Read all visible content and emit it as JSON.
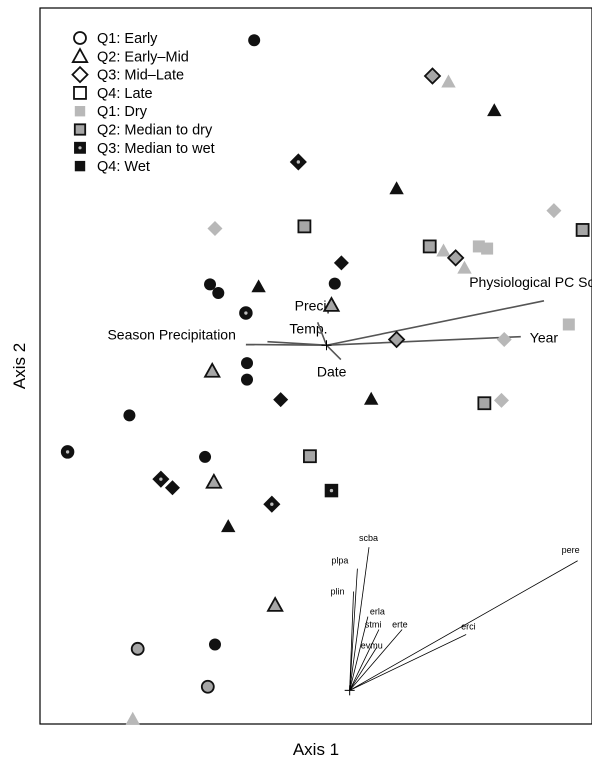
{
  "chart_data": {
    "type": "scatter",
    "title": "",
    "xlabel": "Axis 1",
    "ylabel": "Axis 2",
    "xlim": [
      0,
      100
    ],
    "ylim": [
      0,
      100
    ],
    "grid": false,
    "legend": {
      "placement": "top-left",
      "entries": [
        {
          "label": "Q1: Early",
          "marker": "circle-open"
        },
        {
          "label": "Q2: Early–Mid",
          "marker": "triangle-open"
        },
        {
          "label": "Q3: Mid–Late",
          "marker": "diamond-open"
        },
        {
          "label": "Q4: Late",
          "marker": "square-open"
        },
        {
          "label": "Q1: Dry",
          "fill": "light-gray"
        },
        {
          "label": "Q2: Median to dry",
          "fill": "mid-gray"
        },
        {
          "label": "Q3: Median to wet",
          "fill": "dark-dot"
        },
        {
          "label": "Q4: Wet",
          "fill": "black"
        }
      ]
    },
    "colors": {
      "light_gray": "#b8b8b8",
      "mid_gray": "#a6a6a6",
      "black": "#111111",
      "axis_line": "#555555"
    },
    "points": [
      {
        "shape": "circle",
        "fill": "black",
        "x": 38.8,
        "y": 95.5
      },
      {
        "shape": "diamond",
        "fill": "mid",
        "x": 71.1,
        "y": 90.5
      },
      {
        "shape": "triangle",
        "fill": "light",
        "x": 74.0,
        "y": 89.7
      },
      {
        "shape": "triangle",
        "fill": "black",
        "x": 82.3,
        "y": 85.7
      },
      {
        "shape": "diamond",
        "fill": "dark",
        "x": 46.8,
        "y": 78.5
      },
      {
        "shape": "triangle",
        "fill": "black",
        "x": 64.6,
        "y": 74.8
      },
      {
        "shape": "diamond",
        "fill": "light",
        "x": 31.7,
        "y": 69.2
      },
      {
        "shape": "square",
        "fill": "mid",
        "x": 47.9,
        "y": 69.5
      },
      {
        "shape": "diamond",
        "fill": "light",
        "x": 93.1,
        "y": 71.7
      },
      {
        "shape": "square",
        "fill": "mid",
        "x": 98.3,
        "y": 69.0
      },
      {
        "shape": "square",
        "fill": "mid",
        "x": 70.6,
        "y": 66.7
      },
      {
        "shape": "triangle",
        "fill": "light",
        "x": 73.1,
        "y": 66.1
      },
      {
        "shape": "diamond",
        "fill": "mid",
        "x": 75.3,
        "y": 65.1
      },
      {
        "shape": "triangle",
        "fill": "light",
        "x": 76.9,
        "y": 63.7
      },
      {
        "shape": "square",
        "fill": "light",
        "x": 79.5,
        "y": 66.7
      },
      {
        "shape": "square",
        "fill": "light",
        "x": 81.0,
        "y": 66.4
      },
      {
        "shape": "diamond",
        "fill": "black",
        "x": 54.6,
        "y": 64.4
      },
      {
        "shape": "circle",
        "fill": "black",
        "x": 30.8,
        "y": 61.4
      },
      {
        "shape": "circle",
        "fill": "black",
        "x": 32.3,
        "y": 60.2
      },
      {
        "shape": "triangle",
        "fill": "black",
        "x": 39.6,
        "y": 61.1
      },
      {
        "shape": "circle",
        "fill": "black",
        "x": 53.4,
        "y": 61.5
      },
      {
        "shape": "triangle",
        "fill": "mid",
        "x": 52.8,
        "y": 58.5
      },
      {
        "shape": "circle",
        "fill": "dark",
        "x": 37.3,
        "y": 57.4
      },
      {
        "shape": "square",
        "fill": "light",
        "x": 95.8,
        "y": 55.8
      },
      {
        "shape": "diamond",
        "fill": "light",
        "x": 84.1,
        "y": 53.7
      },
      {
        "shape": "diamond",
        "fill": "mid",
        "x": 64.6,
        "y": 53.7
      },
      {
        "shape": "triangle",
        "fill": "mid",
        "x": 31.2,
        "y": 49.3
      },
      {
        "shape": "circle",
        "fill": "black",
        "x": 37.5,
        "y": 50.4
      },
      {
        "shape": "circle",
        "fill": "black",
        "x": 37.5,
        "y": 48.1
      },
      {
        "shape": "diamond",
        "fill": "black",
        "x": 43.6,
        "y": 45.3
      },
      {
        "shape": "triangle",
        "fill": "black",
        "x": 60.0,
        "y": 45.4
      },
      {
        "shape": "square",
        "fill": "mid",
        "x": 80.5,
        "y": 44.8
      },
      {
        "shape": "diamond",
        "fill": "light",
        "x": 83.6,
        "y": 45.2
      },
      {
        "shape": "circle",
        "fill": "black",
        "x": 16.2,
        "y": 43.1
      },
      {
        "shape": "circle",
        "fill": "dark",
        "x": 5.0,
        "y": 38.0
      },
      {
        "shape": "circle",
        "fill": "black",
        "x": 29.9,
        "y": 37.3
      },
      {
        "shape": "square",
        "fill": "mid",
        "x": 48.9,
        "y": 37.4
      },
      {
        "shape": "diamond",
        "fill": "dark",
        "x": 21.9,
        "y": 34.2
      },
      {
        "shape": "diamond",
        "fill": "black",
        "x": 24.0,
        "y": 33.0
      },
      {
        "shape": "triangle",
        "fill": "mid",
        "x": 31.5,
        "y": 33.8
      },
      {
        "shape": "square",
        "fill": "dark",
        "x": 52.8,
        "y": 32.6
      },
      {
        "shape": "diamond",
        "fill": "dark",
        "x": 42.0,
        "y": 30.7
      },
      {
        "shape": "triangle",
        "fill": "black",
        "x": 34.1,
        "y": 27.6
      },
      {
        "shape": "triangle",
        "fill": "mid",
        "x": 42.6,
        "y": 16.6
      },
      {
        "shape": "circle",
        "fill": "black",
        "x": 31.7,
        "y": 11.1
      },
      {
        "shape": "circle",
        "fill": "mid",
        "x": 17.7,
        "y": 10.5
      },
      {
        "shape": "circle",
        "fill": "mid",
        "x": 30.4,
        "y": 5.2
      },
      {
        "shape": "triangle",
        "fill": "light",
        "x": 16.8,
        "y": 0.7
      }
    ],
    "environmental_vectors": {
      "origin": {
        "x": 51.9,
        "y": 52.9
      },
      "vectors": [
        {
          "label": "Season Precipitation",
          "x": 37.3,
          "y": 53.0
        },
        {
          "label": "Temp.",
          "x": 41.2,
          "y": 53.4
        },
        {
          "label": "Precip.",
          "x": 50.3,
          "y": 56.1
        },
        {
          "label": "Date",
          "x": 54.5,
          "y": 50.9
        },
        {
          "label": "Physiological PC Score",
          "x": 91.3,
          "y": 59.1
        },
        {
          "label": "Year",
          "x": 87.1,
          "y": 54.1
        }
      ]
    },
    "species_vectors": {
      "origin": {
        "x": 56.1,
        "y": 4.7
      },
      "vectors": [
        {
          "label": "pere",
          "x": 97.4,
          "y": 22.8
        },
        {
          "label": "erci",
          "x": 77.2,
          "y": 12.5
        },
        {
          "label": "scba",
          "x": 59.6,
          "y": 24.7
        },
        {
          "label": "plpa",
          "x": 57.5,
          "y": 21.7
        },
        {
          "label": "plin",
          "x": 56.8,
          "y": 18.5
        },
        {
          "label": "erla",
          "x": 59.4,
          "y": 15.0
        },
        {
          "label": "stmi",
          "x": 61.4,
          "y": 13.2
        },
        {
          "label": "erte",
          "x": 65.6,
          "y": 13.2
        },
        {
          "label": "evmu",
          "x": 61.0,
          "y": 10.7
        }
      ]
    }
  }
}
